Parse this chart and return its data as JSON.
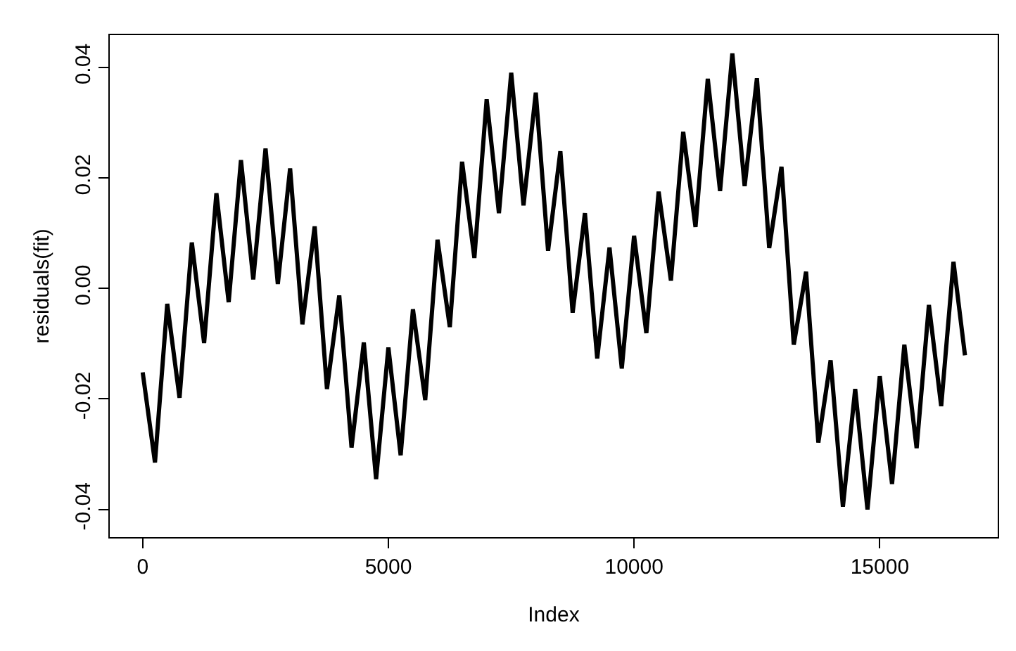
{
  "chart_data": {
    "type": "line",
    "xlabel": "Index",
    "ylabel": "residuals(fit)",
    "x": [
      0,
      250,
      500,
      750,
      1000,
      1250,
      1500,
      1750,
      2000,
      2250,
      2500,
      2750,
      3000,
      3250,
      3500,
      3750,
      4000,
      4250,
      4500,
      4750,
      5000,
      5250,
      5500,
      5750,
      6000,
      6250,
      6500,
      6750,
      7000,
      7250,
      7500,
      7750,
      8000,
      8250,
      8500,
      8750,
      9000,
      9250,
      9500,
      9750,
      10000,
      10250,
      10500,
      10750,
      11000,
      11250,
      11500,
      11750,
      12000,
      12250,
      12500,
      12750,
      13000,
      13250,
      13500,
      13750,
      14000,
      14250,
      14500,
      14750,
      15000,
      15250,
      15500,
      15750,
      16000,
      16250,
      16500,
      16734
    ],
    "series": [
      {
        "color": "#000000",
        "values": [
          -0.0152,
          -0.0315,
          -0.0028,
          -0.0198,
          0.0083,
          -0.0099,
          0.0172,
          -0.0025,
          0.0232,
          0.0016,
          0.0253,
          0.0008,
          0.0217,
          -0.0065,
          0.0112,
          -0.0182,
          -0.0013,
          -0.0288,
          -0.0098,
          -0.0345,
          -0.0107,
          -0.0302,
          -0.0038,
          -0.0202,
          0.0088,
          -0.007,
          0.0229,
          0.0055,
          0.0342,
          0.0136,
          0.039,
          0.015,
          0.0354,
          0.0068,
          0.0248,
          -0.0044,
          0.0136,
          -0.0127,
          0.0074,
          -0.0145,
          0.0095,
          -0.0081,
          0.0175,
          0.0014,
          0.0283,
          0.0111,
          0.0379,
          0.0176,
          0.0425,
          0.0185,
          0.038,
          0.0073,
          0.022,
          -0.0102,
          0.003,
          -0.0279,
          -0.013,
          -0.0395,
          -0.0182,
          -0.04,
          -0.0159,
          -0.0354,
          -0.0102,
          -0.0289,
          -0.003,
          -0.0213,
          0.0048,
          -0.0121
        ]
      }
    ],
    "xlim": [
      -670,
      17400
    ],
    "ylim": [
      -0.045,
      0.0458
    ],
    "xticks": [
      0,
      5000,
      10000,
      15000
    ],
    "yticks": [
      {
        "value": -0.04,
        "label": "-0.04"
      },
      {
        "value": -0.02,
        "label": "-0.02"
      },
      {
        "value": 0,
        "label": "0.00"
      },
      {
        "value": 0.02,
        "label": "0.02"
      },
      {
        "value": 0.04,
        "label": "0.04"
      }
    ],
    "grid": false,
    "marker": "none",
    "line_style": "solid"
  }
}
